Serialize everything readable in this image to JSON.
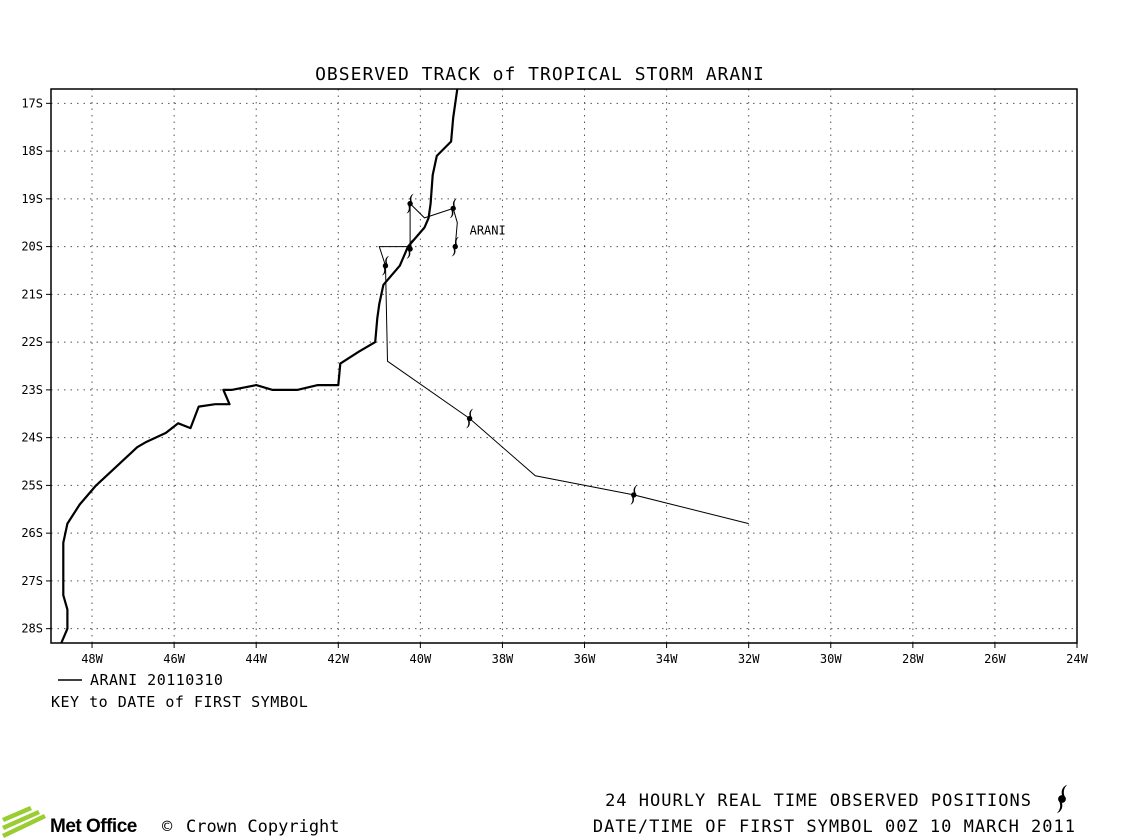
{
  "title": "OBSERVED TRACK of TROPICAL STORM ARANI",
  "storm_label": "ARANI",
  "map": {
    "lon_range": [
      -49,
      -24
    ],
    "lat_range": [
      -28.3,
      -16.7
    ],
    "lon_ticks": [
      {
        "value": -48,
        "label": "48W"
      },
      {
        "value": -46,
        "label": "46W"
      },
      {
        "value": -44,
        "label": "44W"
      },
      {
        "value": -42,
        "label": "42W"
      },
      {
        "value": -40,
        "label": "40W"
      },
      {
        "value": -38,
        "label": "38W"
      },
      {
        "value": -36,
        "label": "36W"
      },
      {
        "value": -34,
        "label": "34W"
      },
      {
        "value": -32,
        "label": "32W"
      },
      {
        "value": -30,
        "label": "30W"
      },
      {
        "value": -28,
        "label": "28W"
      },
      {
        "value": -26,
        "label": "26W"
      },
      {
        "value": -24,
        "label": "24W"
      }
    ],
    "lat_ticks": [
      {
        "value": -17,
        "label": "17S"
      },
      {
        "value": -18,
        "label": "18S"
      },
      {
        "value": -19,
        "label": "19S"
      },
      {
        "value": -20,
        "label": "20S"
      },
      {
        "value": -21,
        "label": "21S"
      },
      {
        "value": -22,
        "label": "22S"
      },
      {
        "value": -23,
        "label": "23S"
      },
      {
        "value": -24,
        "label": "24S"
      },
      {
        "value": -25,
        "label": "25S"
      },
      {
        "value": -26,
        "label": "26S"
      },
      {
        "value": -27,
        "label": "27S"
      },
      {
        "value": -28,
        "label": "28S"
      }
    ],
    "gridlines": true,
    "coastline": [
      [
        -39.1,
        -16.7
      ],
      [
        -39.2,
        -17.3
      ],
      [
        -39.25,
        -17.8
      ],
      [
        -39.6,
        -18.1
      ],
      [
        -39.7,
        -18.5
      ],
      [
        -39.75,
        -19.1
      ],
      [
        -39.8,
        -19.4
      ],
      [
        -39.9,
        -19.6
      ],
      [
        -40.3,
        -20.0
      ],
      [
        -40.5,
        -20.4
      ],
      [
        -40.9,
        -20.8
      ],
      [
        -41.0,
        -21.2
      ],
      [
        -41.05,
        -21.5
      ],
      [
        -41.1,
        -22.0
      ],
      [
        -41.5,
        -22.2
      ],
      [
        -41.95,
        -22.45
      ],
      [
        -42.0,
        -22.9
      ],
      [
        -42.5,
        -22.9
      ],
      [
        -43.0,
        -23.0
      ],
      [
        -43.6,
        -23.0
      ],
      [
        -44.0,
        -22.9
      ],
      [
        -44.6,
        -23.0
      ],
      [
        -44.8,
        -23.0
      ],
      [
        -44.65,
        -23.3
      ],
      [
        -45.0,
        -23.3
      ],
      [
        -45.4,
        -23.35
      ],
      [
        -45.6,
        -23.8
      ],
      [
        -45.9,
        -23.7
      ],
      [
        -46.2,
        -23.9
      ],
      [
        -46.7,
        -24.1
      ],
      [
        -46.9,
        -24.2
      ],
      [
        -47.4,
        -24.6
      ],
      [
        -47.9,
        -25.0
      ],
      [
        -48.3,
        -25.4
      ],
      [
        -48.6,
        -25.8
      ],
      [
        -48.7,
        -26.2
      ],
      [
        -48.7,
        -26.6
      ],
      [
        -48.7,
        -27.0
      ],
      [
        -48.7,
        -27.3
      ],
      [
        -48.6,
        -27.6
      ],
      [
        -48.6,
        -28.0
      ],
      [
        -48.75,
        -28.3
      ]
    ],
    "track": [
      [
        -32.0,
        -25.8
      ],
      [
        -34.8,
        -25.2
      ],
      [
        -37.2,
        -24.8
      ],
      [
        -38.8,
        -23.6
      ],
      [
        -40.8,
        -22.4
      ],
      [
        -40.85,
        -20.4
      ],
      [
        -41.0,
        -20.0
      ],
      [
        -40.25,
        -20.0
      ],
      [
        -40.25,
        -19.1
      ],
      [
        -39.9,
        -19.4
      ],
      [
        -39.2,
        -19.2
      ],
      [
        -39.1,
        -19.5
      ],
      [
        -39.15,
        -20.0
      ]
    ],
    "symbols": [
      [
        -34.8,
        -25.2
      ],
      [
        -38.8,
        -23.6
      ],
      [
        -40.85,
        -20.4
      ],
      [
        -40.25,
        -20.05
      ],
      [
        -40.25,
        -19.1
      ],
      [
        -39.2,
        -19.2
      ],
      [
        -39.15,
        -20.0
      ]
    ],
    "storm_label_position": [
      -38.8,
      -19.75
    ]
  },
  "key": {
    "entry": "ARANI 20110310",
    "caption": "KEY to DATE of FIRST SYMBOL"
  },
  "footer": {
    "line1": "24 HOURLY REAL TIME OBSERVED POSITIONS",
    "line2": "DATE/TIME OF FIRST SYMBOL 00Z 10 MARCH 2011",
    "brand": "Met Office",
    "copyright": "Crown Copyright",
    "copyright_symbol": "©"
  }
}
